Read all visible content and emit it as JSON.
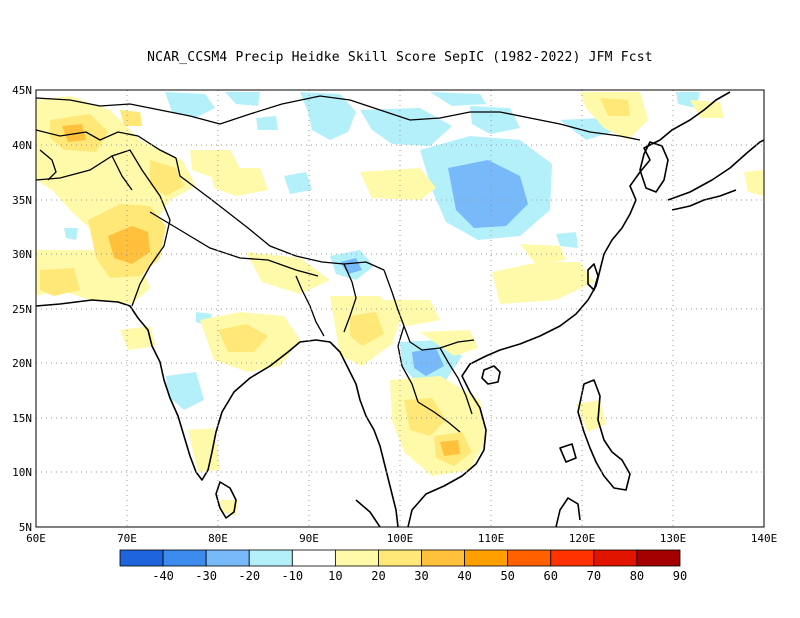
{
  "title": "NCAR_CCSM4 Precip Heidke Skill Score SepIC (1982-2022) JFM Fcst",
  "lat_labels": [
    "45N",
    "40N",
    "35N",
    "30N",
    "25N",
    "20N",
    "15N",
    "10N",
    "5N"
  ],
  "lon_labels": [
    "60E",
    "70E",
    "80E",
    "90E",
    "100E",
    "110E",
    "120E",
    "130E",
    "140E"
  ],
  "colorbar": {
    "colors": [
      "#1e64dc",
      "#3c8cf0",
      "#78b9fa",
      "#b4f0fa",
      "#ffffff",
      "#fffaaa",
      "#ffe878",
      "#ffc03c",
      "#ffa000",
      "#ff6000",
      "#ff3200",
      "#e11400",
      "#a50000"
    ],
    "labels": [
      "-40",
      "-30",
      "-20",
      "-10",
      "10",
      "20",
      "30",
      "40",
      "50",
      "60",
      "70",
      "80",
      "90"
    ]
  }
}
